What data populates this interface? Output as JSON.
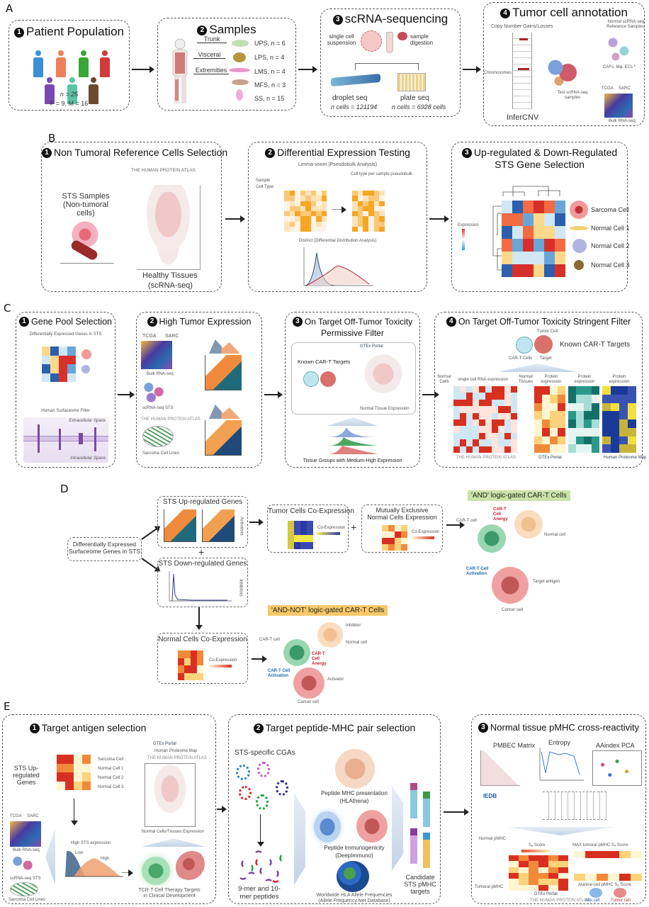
{
  "panelA": {
    "label": "A",
    "patients": {
      "num": "1",
      "title": "Patient Population",
      "n": "n = 25",
      "sex": "F = 9, M = 16",
      "colors": [
        "#3a8fd6",
        "#f07e5a",
        "#3aa63a",
        "#d33a3a",
        "#7a48b0",
        "#5bc4a4",
        "#6b4a30"
      ]
    },
    "samples": {
      "num": "2",
      "title": "Samples",
      "regions": [
        "Trunk",
        "Visceral",
        "Extremities"
      ],
      "types": [
        "UPS, n = 6",
        "LPS, n = 4",
        "LMS, n = 4",
        "MFS, n = 3",
        "SS, n = 15"
      ]
    },
    "sequencing": {
      "num": "3",
      "title": "scRNA-sequencing",
      "single_cell": "single cell suspension",
      "digestion": "sample digestion",
      "droplet": "droplet seq",
      "droplet_n": "n cells = 121194",
      "plate": "plate seq",
      "plate_n": "n cells = 6928 cells"
    },
    "annotation": {
      "num": "4",
      "title": "Tumor cell annotation",
      "cnv": "Copy Number Gains/Losses",
      "chromosomes": "Chromosomes",
      "infercnv": "InferCNV",
      "reference": "Normal scRNA-seq Reference Samples",
      "ref_sub": "CAFs, Mφ, ECs *",
      "test": "Test scRNA-seq samples",
      "tcga": "TCGA",
      "sarc": "SARC",
      "bulk": "Bulk RNA-seq"
    }
  },
  "panelB": {
    "label": "B",
    "box1": {
      "num": "1",
      "title": "Non Tumoral Reference Cells Selection",
      "sts": "STS Samples (Non-tumoral cells)",
      "hpa": "THE HUMAN PROTEIN ATLAS",
      "healthy": "Healthy Tissues",
      "healthy_sub": "(scRNA-seq)"
    },
    "box2": {
      "num": "2",
      "title": "Differential Expression Testing",
      "limma": "Limma-voom (Pseudobulk Analysis)",
      "sample": "Sample",
      "celltype": "Cell Type",
      "pseudobulk": "Cell type per sample pseudobulk",
      "distinct": "Distinct (Differential Distribution Analysis)"
    },
    "box3": {
      "num": "3",
      "title_line1": "Up-regulated & Down-Regulated",
      "title_line2": "STS Gene Selection",
      "expression": "Expression",
      "cells": [
        "Sarcoma Cell",
        "Normal Cell 1",
        "Normal Cell 2",
        "Normal Cell 3"
      ]
    }
  },
  "panelC": {
    "label": "C",
    "box1": {
      "num": "1",
      "title": "Gene Pool Selection",
      "deg": "Differentially Expressed Genes in STS",
      "surfaceome": "Human Surfaceome Filter",
      "extra": "Extracellular Space",
      "intra": "Intracellular Space"
    },
    "box2": {
      "num": "2",
      "title": "High Tumor Expression",
      "tcga": "TCGA",
      "sarc": "SARC",
      "bulk": "Bulk RNA-seq",
      "scrna": "scRNA-seq STS",
      "hpa": "THE HUMAN PROTEIN ATLAS",
      "lines": "Sarcoma Cell Lines"
    },
    "box3": {
      "num": "3",
      "title_line1": "On Target Off-Tumor Toxicity",
      "title_line2": "Permissive Filter",
      "known": "Known CAR-T Targets",
      "gtex": "GTEx Portal",
      "normal_tissue": "Normal Tissue Expression",
      "tissue_groups": "Tissue Groups with Medium-High Expression"
    },
    "box4": {
      "num": "4",
      "title": "On Target Off-Tumor Toxicity Stringent Filter",
      "known": "Known CAR-T Targets",
      "tumor_cell": "Tumor Cell",
      "cart": "CAR-T Cells",
      "target": "Target",
      "sc_rna": "single cell RNA expression",
      "protein": "Protein expression",
      "normal_cells": "Normal Cells",
      "normal_tissues": "Normal Tissues",
      "hpa": "THE HUMAN PROTEIN ATLAS",
      "gtex": "GTEx Portal",
      "hpm": "Human Proteome Map"
    }
  },
  "panelD": {
    "label": "D",
    "source": "Differentially Expressed Surfaceome Genes in STS",
    "up": "STS Up-regulated Genes",
    "down": "STS Down-regulated Genes",
    "activators": "Activators",
    "inhibitors": "Inhibitors",
    "tumor_coexp": "Tumor Cells Co-Expression",
    "mutually": "Mutually Exclusive Normal Cells Expression",
    "normal_coexp": "Normal Cells Co-Expression",
    "coexpression": "Co-Expression",
    "and_label": "'AND' logic-gated CAR-T Cells",
    "andnot_label": "'AND-NOT' logic-gated CAR-T Cells",
    "cart_cell": "CAR-T cell",
    "normal_cell": "Normal cell",
    "cancer_cell": "Cancer cell",
    "anergy": "CAR-T Cell Anergy",
    "activation": "CAR-T Cell Activation",
    "target_antigen": "Target antigen",
    "inhibitor": "Inhibitor",
    "activator": "Activator",
    "colors": {
      "and": "#c9e3a8",
      "andnot": "#f7c96a"
    }
  },
  "panelE": {
    "label": "E",
    "box1": {
      "num": "1",
      "title": "Target antigen selection",
      "up": "STS Up-regulated Genes",
      "cells": [
        "Sarcoma Cell",
        "Normal Cell 1",
        "Normal Cell 2",
        "Normal Cell 3"
      ],
      "gtex": "GTEx Portal",
      "hpm": "Human Proteome Map",
      "hpa": "THE HUMAN PROTEIN ATLAS",
      "normal": "Normal Cells/Tissues Expression",
      "tcga": "TCGA",
      "sarc": "SARC",
      "bulk": "Bulk RNA-seq",
      "scrna": "scRNA-seq STS",
      "lines": "Sarcoma Cell Lines",
      "high": "High STS expression",
      "low_tag": "Low",
      "high_tag": "High",
      "tcrt": "TCR-T Cell Therapy Targets in Clinical Development"
    },
    "box2": {
      "num": "2",
      "title": "Target peptide-MHC pair selection",
      "cgas": "STS-specific CGAs",
      "peptides": "9-mer and 10-mer peptides",
      "presentation": "Peptide MHC presentation",
      "presentation_tool": "(HLAthena)",
      "immunogenicity": "Peptide Immunogenicity",
      "immunogenicity_tool": "(DeepImmuno)",
      "hla": "Worldwide HLA Allele Frequencies",
      "hla_db": "(Allele Frequency Net Database)",
      "candidate": "Candidate STS pMHC targets",
      "cgas_colors": [
        "#2a7fd1",
        "#c85ac8",
        "#d62a2a",
        "#2b2b8a",
        "#22a33a"
      ]
    },
    "box3": {
      "num": "3",
      "title": "Normal tissue pMHC cross-reactivity",
      "pmbec": "PMBEC Matrix",
      "entropy": "Entropy",
      "aaindex": "AAindex PCA",
      "iedb": "IEDB",
      "normal_pmhc": "Normal pMHC",
      "tumoral_pmhc": "Tumoral pMHC",
      "score": "Sₐ Score",
      "max": "MAX tumoral pMHC Sₐ Score",
      "alanine": "Alanine-cell pMHC Sₐ Score",
      "gtex": "GTEx Portal",
      "hpa": "THE HUMAN PROTEIN ATLAS",
      "allo": "Allo cell",
      "tumor": "Tumor cell"
    }
  }
}
